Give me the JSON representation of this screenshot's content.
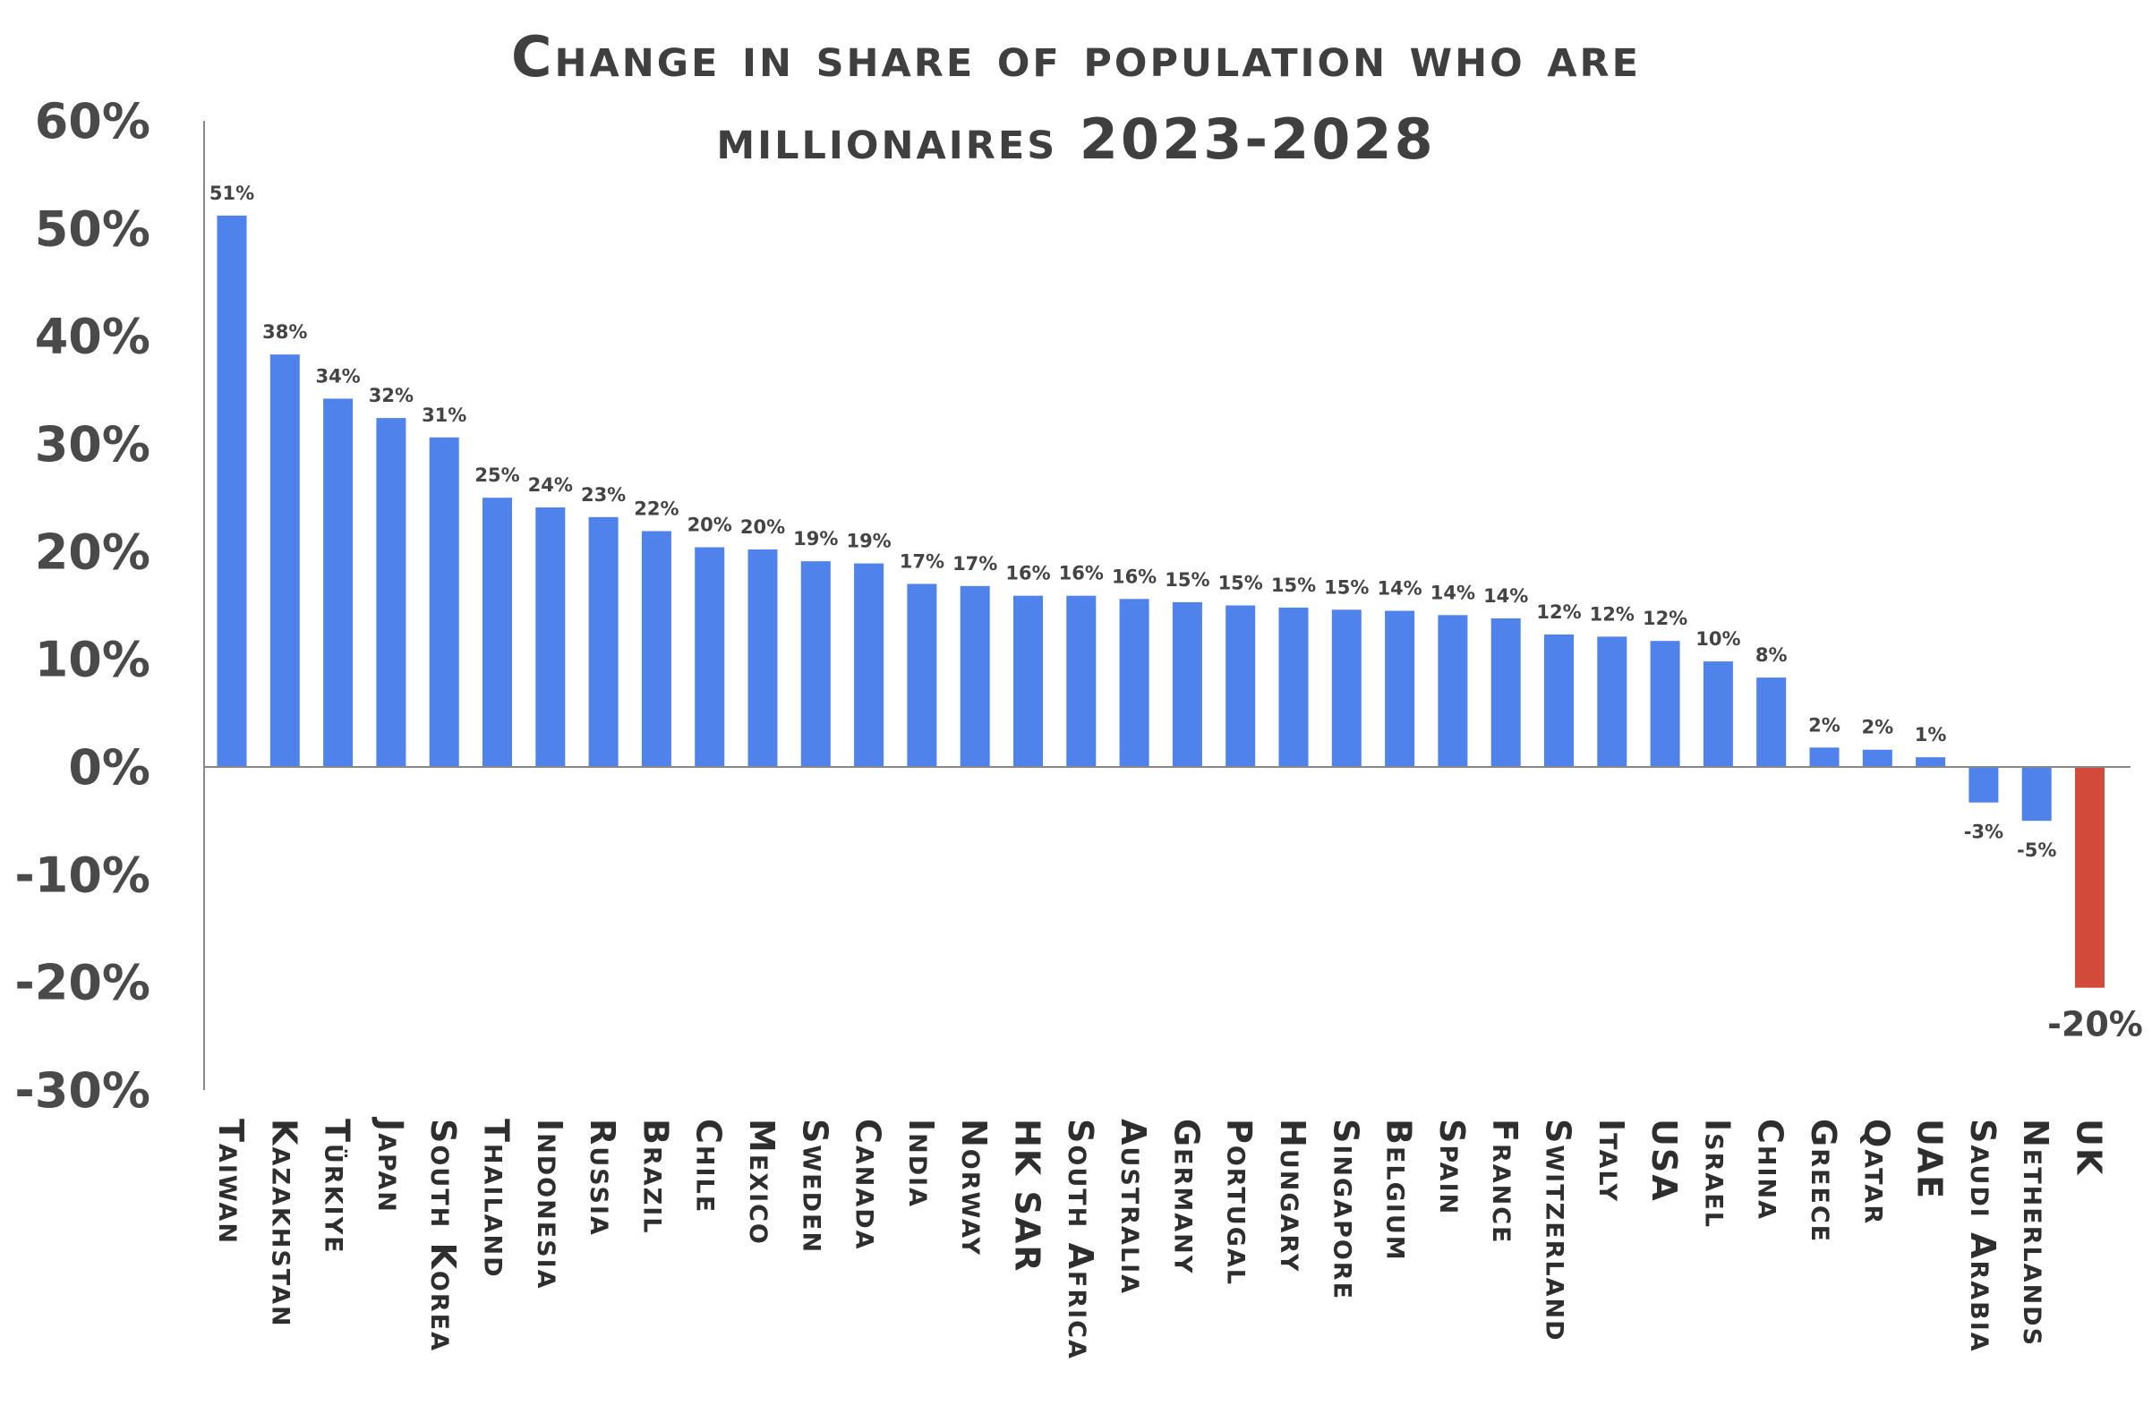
{
  "chart_data": {
    "type": "bar",
    "title_line1": "Change in share of population who are",
    "title_line2": "millionaires 2023-2028",
    "xlabel": "",
    "ylabel": "",
    "ylim": [
      -30,
      60
    ],
    "yticks": [
      60,
      50,
      40,
      30,
      20,
      10,
      0,
      -10,
      -20,
      -30
    ],
    "ytick_labels": [
      "60%",
      "50%",
      "40%",
      "30%",
      "20%",
      "10%",
      "0%",
      "-10%",
      "-20%",
      "-30%"
    ],
    "grid": false,
    "legend": "none",
    "colors": {
      "positive": "#4f82ea",
      "negative": "#4f82ea",
      "highlight": "#d24b3a",
      "axis": "#888888"
    },
    "categories": [
      "Taiwan",
      "Kazakhstan",
      "Türkiye",
      "Japan",
      "South Korea",
      "Thailand",
      "Indonesia",
      "Russia",
      "Brazil",
      "Chile",
      "Mexico",
      "Sweden",
      "Canada",
      "India",
      "Norway",
      "HK SAR",
      "South Africa",
      "Australia",
      "Germany",
      "Portugal",
      "Hungary",
      "Singapore",
      "Belgium",
      "Spain",
      "France",
      "Switzerland",
      "Italy",
      "USA",
      "Israel",
      "China",
      "Greece",
      "Qatar",
      "UAE",
      "Saudi Arabia",
      "Netherlands",
      "UK"
    ],
    "values": [
      51.2,
      38.3,
      34.2,
      32.4,
      30.6,
      25.0,
      24.1,
      23.2,
      21.9,
      20.4,
      20.2,
      19.1,
      18.9,
      17.0,
      16.8,
      15.9,
      15.9,
      15.6,
      15.3,
      15.0,
      14.8,
      14.6,
      14.5,
      14.1,
      13.8,
      12.3,
      12.1,
      11.7,
      9.8,
      8.3,
      1.8,
      1.6,
      0.9,
      -3.3,
      -5.0,
      -20.5
    ],
    "value_labels": [
      "51%",
      "38%",
      "34%",
      "32%",
      "31%",
      "25%",
      "24%",
      "23%",
      "22%",
      "20%",
      "20%",
      "19%",
      "19%",
      "17%",
      "17%",
      "16%",
      "16%",
      "16%",
      "15%",
      "15%",
      "15%",
      "15%",
      "14%",
      "14%",
      "14%",
      "12%",
      "12%",
      "12%",
      "10%",
      "8%",
      "2%",
      "2%",
      "1%",
      "-3%",
      "-5%",
      "-20%"
    ],
    "highlight_category": "UK"
  }
}
